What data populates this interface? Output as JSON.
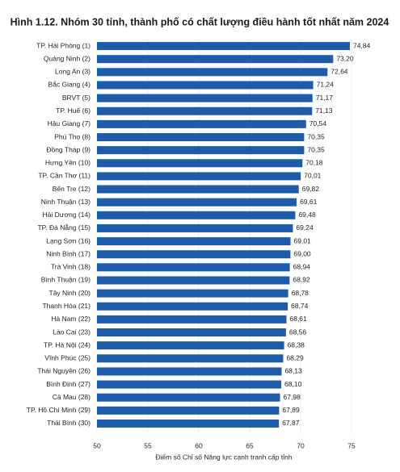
{
  "chart_data": {
    "type": "hbar",
    "title": "Hình 1.12. Nhóm 30 tỉnh, thành phố có chất lượng điều hành tốt nhất năm 2024",
    "x_label": "Điểm số Chỉ số Năng lực cạnh tranh cấp tỉnh",
    "categories": [
      "TP. Hải Phòng (1)",
      "Quảng Ninh (2)",
      "Long An (3)",
      "Bắc Giang (4)",
      "BRVT (5)",
      "TP. Huế (6)",
      "Hậu Giang (7)",
      "Phú Thọ (8)",
      "Đồng Tháp (9)",
      "Hưng Yên (10)",
      "TP. Cần Thơ (11)",
      "Bến Tre (12)",
      "Ninh Thuận (13)",
      "Hải Dương (14)",
      "TP. Đà Nẵng (15)",
      "Lạng Sơn (16)",
      "Ninh Bình (17)",
      "Trà Vinh (18)",
      "Bình Thuận (19)",
      "Tây Ninh (20)",
      "Thanh Hóa (21)",
      "Hà Nam (22)",
      "Lào Cai (23)",
      "TP. Hà Nội (24)",
      "Vĩnh Phúc (25)",
      "Thái Nguyên (26)",
      "Bình Định (27)",
      "Cà Mau (28)",
      "TP. Hồ Chí Minh (29)",
      "Thái Bình (30)"
    ],
    "values": [
      74.84,
      73.2,
      72.64,
      71.24,
      71.17,
      71.13,
      70.54,
      70.35,
      70.35,
      70.18,
      70.01,
      69.82,
      69.61,
      69.48,
      69.24,
      69.01,
      69.0,
      68.94,
      68.92,
      68.78,
      68.74,
      68.61,
      68.56,
      68.38,
      68.29,
      68.13,
      68.1,
      67.98,
      67.89,
      67.87
    ],
    "value_labels": [
      "74,84",
      "73,20",
      "72,64",
      "71,24",
      "71,17",
      "71,13",
      "70,54",
      "70,35",
      "70,35",
      "70,18",
      "70,01",
      "69,82",
      "69,61",
      "69,48",
      "69,24",
      "69,01",
      "69,00",
      "68,94",
      "68,92",
      "68,78",
      "68,74",
      "68,61",
      "68,56",
      "68,38",
      "68,29",
      "68,13",
      "68,10",
      "67,98",
      "67,89",
      "67,87"
    ],
    "color": "#1c5ca8",
    "xlim": [
      50,
      75
    ],
    "xticks": [
      50,
      55,
      60,
      65,
      70,
      75
    ],
    "grid": true
  }
}
